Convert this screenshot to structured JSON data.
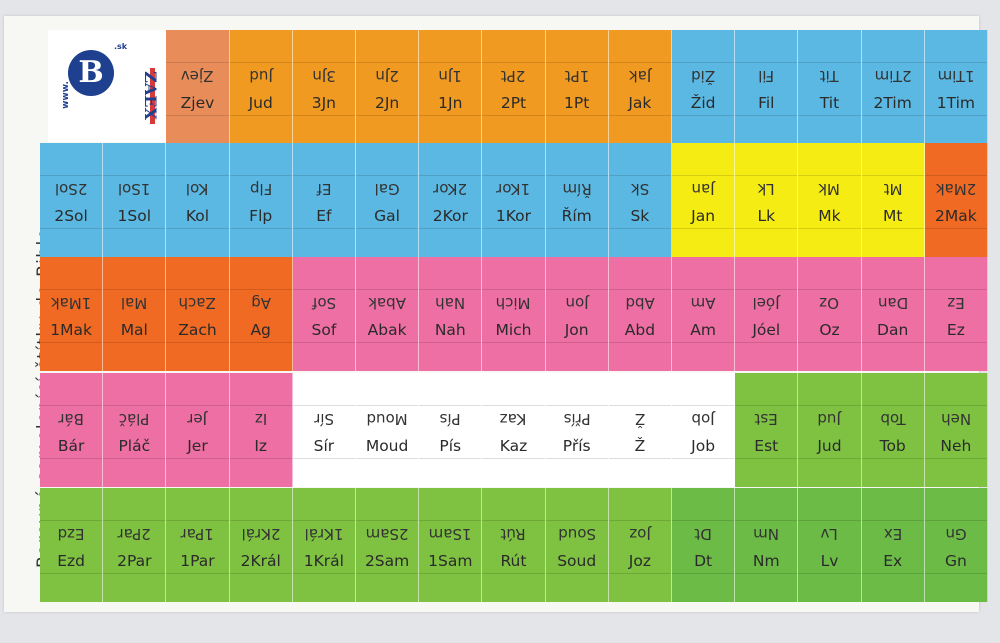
{
  "side_label": "Barevné samolepící štítky do Bible.",
  "logo": {
    "www": "www.",
    "tld": ".sk",
    "brand": "ZAEX"
  },
  "colors": {
    "orange": "#f19a22",
    "orange_dark": "#f06a23",
    "orange_light": "#e88d5a",
    "blue": "#5bb8e2",
    "yellow": "#f5ec14",
    "pink": "#ee6fa3",
    "white": "#ffffff",
    "green_light": "#7fc241",
    "green": "#6cbb47"
  },
  "rows": [
    [
      {
        "label": "Zjev",
        "color": "orange_light"
      },
      {
        "label": "Jud",
        "color": "orange"
      },
      {
        "label": "3Jn",
        "color": "orange"
      },
      {
        "label": "2Jn",
        "color": "orange"
      },
      {
        "label": "1Jn",
        "color": "orange"
      },
      {
        "label": "2Pt",
        "color": "orange"
      },
      {
        "label": "1Pt",
        "color": "orange"
      },
      {
        "label": "Jak",
        "color": "orange"
      },
      {
        "label": "Žid",
        "color": "blue"
      },
      {
        "label": "Fil",
        "color": "blue"
      },
      {
        "label": "Tit",
        "color": "blue"
      },
      {
        "label": "2Tim",
        "color": "blue"
      },
      {
        "label": "1Tim",
        "color": "blue"
      }
    ],
    [
      {
        "label": "2Sol",
        "color": "blue"
      },
      {
        "label": "1Sol",
        "color": "blue"
      },
      {
        "label": "Kol",
        "color": "blue"
      },
      {
        "label": "Flp",
        "color": "blue"
      },
      {
        "label": "Ef",
        "color": "blue"
      },
      {
        "label": "Gal",
        "color": "blue"
      },
      {
        "label": "2Kor",
        "color": "blue"
      },
      {
        "label": "1Kor",
        "color": "blue"
      },
      {
        "label": "Řím",
        "color": "blue"
      },
      {
        "label": "Sk",
        "color": "blue"
      },
      {
        "label": "Jan",
        "color": "yellow"
      },
      {
        "label": "Lk",
        "color": "yellow"
      },
      {
        "label": "Mk",
        "color": "yellow"
      },
      {
        "label": "Mt",
        "color": "yellow"
      },
      {
        "label": "2Mak",
        "color": "orange_dark"
      }
    ],
    [
      {
        "label": "1Mak",
        "color": "orange_dark"
      },
      {
        "label": "Mal",
        "color": "orange_dark"
      },
      {
        "label": "Zach",
        "color": "orange_dark"
      },
      {
        "label": "Ag",
        "color": "orange_dark"
      },
      {
        "label": "Sof",
        "color": "pink"
      },
      {
        "label": "Abak",
        "color": "pink"
      },
      {
        "label": "Nah",
        "color": "pink"
      },
      {
        "label": "Mich",
        "color": "pink"
      },
      {
        "label": "Jon",
        "color": "pink"
      },
      {
        "label": "Abd",
        "color": "pink"
      },
      {
        "label": "Am",
        "color": "pink"
      },
      {
        "label": "Jóel",
        "color": "pink"
      },
      {
        "label": "Oz",
        "color": "pink"
      },
      {
        "label": "Dan",
        "color": "pink"
      },
      {
        "label": "Ez",
        "color": "pink"
      }
    ],
    [
      {
        "label": "Bár",
        "color": "pink"
      },
      {
        "label": "Pláč",
        "color": "pink"
      },
      {
        "label": "Jer",
        "color": "pink"
      },
      {
        "label": "Iz",
        "color": "pink"
      },
      {
        "label": "Sír",
        "color": "white"
      },
      {
        "label": "Moud",
        "color": "white"
      },
      {
        "label": "Pís",
        "color": "white"
      },
      {
        "label": "Kaz",
        "color": "white"
      },
      {
        "label": "Přís",
        "color": "white"
      },
      {
        "label": "Ž",
        "color": "white"
      },
      {
        "label": "Job",
        "color": "white"
      },
      {
        "label": "Est",
        "color": "green_light"
      },
      {
        "label": "Jud",
        "color": "green_light"
      },
      {
        "label": "Tob",
        "color": "green_light"
      },
      {
        "label": "Neh",
        "color": "green_light"
      }
    ],
    [
      {
        "label": "Ezd",
        "color": "green_light"
      },
      {
        "label": "2Par",
        "color": "green_light"
      },
      {
        "label": "1Par",
        "color": "green_light"
      },
      {
        "label": "2Král",
        "color": "green_light"
      },
      {
        "label": "1Král",
        "color": "green_light"
      },
      {
        "label": "2Sam",
        "color": "green_light"
      },
      {
        "label": "1Sam",
        "color": "green_light"
      },
      {
        "label": "Rút",
        "color": "green_light"
      },
      {
        "label": "Soud",
        "color": "green_light"
      },
      {
        "label": "Joz",
        "color": "green_light"
      },
      {
        "label": "Dt",
        "color": "green"
      },
      {
        "label": "Nm",
        "color": "green"
      },
      {
        "label": "Lv",
        "color": "green"
      },
      {
        "label": "Ex",
        "color": "green"
      },
      {
        "label": "Gn",
        "color": "green"
      }
    ]
  ]
}
